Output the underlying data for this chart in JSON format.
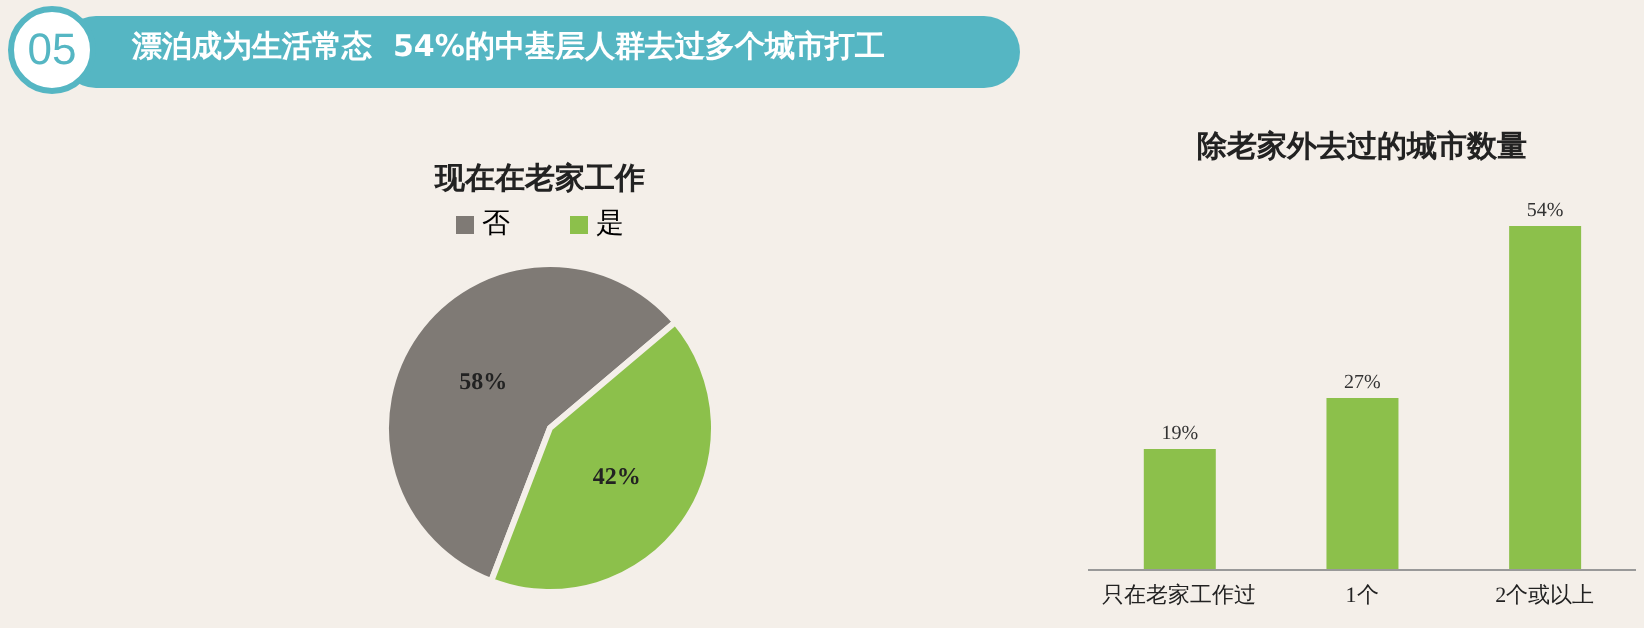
{
  "chart_data": [
    {
      "type": "other",
      "title": "漂泊成为生活常态  54%的中基层人群去过多个城市打工",
      "annotations": [
        "05"
      ]
    },
    {
      "type": "pie",
      "title": "现在在老家工作",
      "categories": [
        "否",
        "是"
      ],
      "values": [
        58,
        42
      ],
      "colors": [
        "#7f7a75",
        "#8cc04b"
      ],
      "value_labels": [
        "58%",
        "42%"
      ],
      "legend": "top"
    },
    {
      "type": "bar",
      "title": "除老家外去过的城市数量",
      "categories": [
        "只在老家工作过",
        "1个",
        "2个或以上"
      ],
      "values": [
        19,
        27,
        54
      ],
      "color": "#8cc04b",
      "value_labels": [
        "19%",
        "27%",
        "54%"
      ]
    }
  ]
}
